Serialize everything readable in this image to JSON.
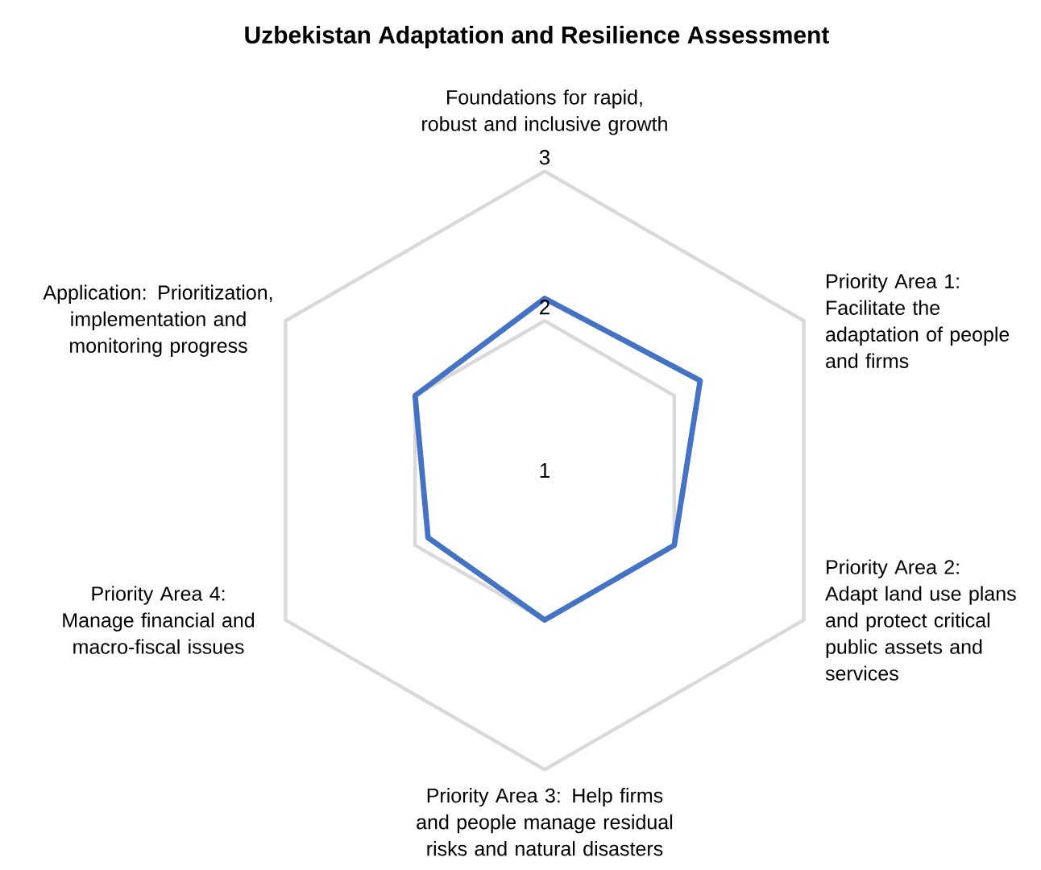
{
  "chart_data": {
    "type": "radar",
    "title": "Uzbekistan Adaptation and Resilience Assessment",
    "categories": [
      "Foundations for rapid, robust and inclusive growth",
      "Priority Area 1: Facilitate the adaptation of people and firms",
      "Priority Area 2: Adapt land use plans and protect critical public assets and services",
      "Priority Area 3: Help firms and people manage residual risks and natural disasters",
      "Priority Area 4: Manage financial and macro-fiscal issues",
      "Application: Prioritization, implementation and monitoring progress"
    ],
    "series": [
      {
        "color": "#4472c4",
        "values": [
          2.15,
          2.2,
          2.0,
          2.0,
          1.9,
          2.0
        ]
      }
    ],
    "ylim": [
      1,
      3
    ],
    "yticks": [
      1,
      2,
      3
    ],
    "grid": true
  }
}
